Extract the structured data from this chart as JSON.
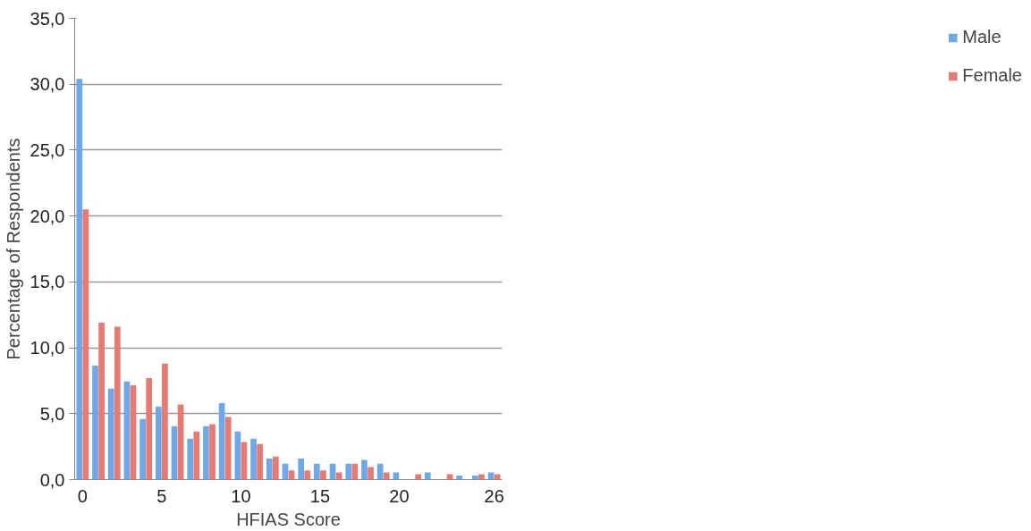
{
  "chart_data": {
    "type": "bar",
    "xlabel": "HFIAS Score",
    "ylabel": "Percentage of Respondents",
    "categories": [
      "0",
      null,
      null,
      null,
      null,
      "5",
      null,
      null,
      null,
      null,
      "10",
      null,
      null,
      null,
      null,
      "15",
      null,
      null,
      null,
      null,
      "20",
      null,
      null,
      null,
      null,
      null,
      "26"
    ],
    "series": [
      {
        "name": "Male",
        "color": "#6fa8e8",
        "values": [
          30.4,
          8.65,
          6.9,
          7.45,
          4.6,
          5.55,
          4.05,
          3.1,
          4.05,
          5.8,
          3.65,
          3.1,
          1.6,
          1.2,
          1.6,
          1.2,
          1.2,
          1.2,
          1.5,
          1.2,
          0.55,
          0,
          0.55,
          0,
          0.3,
          0.3,
          0.55
        ]
      },
      {
        "name": "Female",
        "color": "#e87a74",
        "values": [
          20.5,
          11.9,
          11.6,
          7.15,
          7.7,
          8.8,
          5.7,
          3.65,
          4.2,
          4.75,
          2.85,
          2.7,
          1.75,
          0.7,
          0.7,
          0.7,
          0.55,
          1.2,
          0.95,
          0.55,
          0,
          0.4,
          0,
          0.4,
          0,
          0.4,
          0.4
        ]
      }
    ],
    "ylim": [
      0,
      35
    ],
    "yticks": [
      {
        "value": 0,
        "label": "0,0"
      },
      {
        "value": 5,
        "label": "5,0"
      },
      {
        "value": 10,
        "label": "10,0"
      },
      {
        "value": 15,
        "label": "15,0"
      },
      {
        "value": 20,
        "label": "20,0"
      },
      {
        "value": 25,
        "label": "25,0"
      },
      {
        "value": 30,
        "label": "30,0"
      },
      {
        "value": 35,
        "label": "35,0"
      }
    ],
    "grid": "y",
    "legend": "right"
  }
}
